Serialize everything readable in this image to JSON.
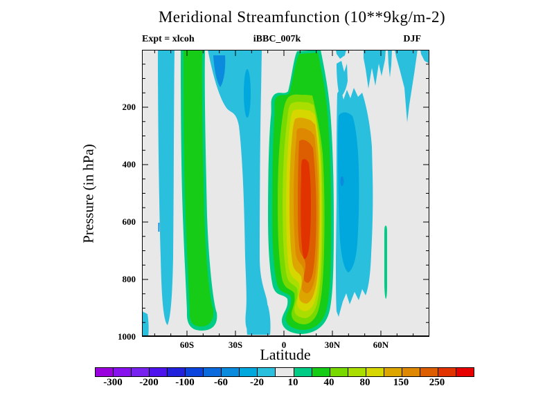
{
  "title": "Meridional Streamfunction (10**9kg/m-2)",
  "annotations": {
    "left": "Expt = xlcoh",
    "center": "iBBC_007k",
    "right": "DJF"
  },
  "axes": {
    "x": {
      "label": "Latitude",
      "tick_labels": [
        "60S",
        "30S",
        "0",
        "30N",
        "60N"
      ]
    },
    "y": {
      "label": "Pressure (in hPa)",
      "tick_labels": [
        "200",
        "400",
        "600",
        "800",
        "1000"
      ]
    }
  },
  "colorbar": {
    "labels": [
      "-300",
      "-200",
      "-100",
      "-60",
      "-20",
      "10",
      "40",
      "80",
      "150",
      "250"
    ],
    "colors": [
      "#9900dd",
      "#8812ee",
      "#7722ee",
      "#4d14ee",
      "#2222dd",
      "#0b45dd",
      "#0b6bdd",
      "#0b8bdd",
      "#00a8dd",
      "#29bfdd",
      "#e8e8e8",
      "#00cc85",
      "#16cc16",
      "#77d900",
      "#aadd00",
      "#d6d600",
      "#dda500",
      "#dd8800",
      "#dd5e00",
      "#e03300",
      "#e60000"
    ]
  },
  "chart_data": {
    "type": "heatmap",
    "subtype": "filled-contour (latitude-pressure cross section)",
    "title": "Meridional Streamfunction (10**9kg/m-2)",
    "xlabel": "Latitude",
    "ylabel": "Pressure (in hPa)",
    "x_ticks": [
      "60S",
      "30S",
      "0",
      "30N",
      "60N"
    ],
    "x_range_deg": [
      -90,
      90
    ],
    "y_ticks": [
      200,
      400,
      600,
      800,
      1000
    ],
    "y_range_hpa": [
      0,
      1000
    ],
    "season": "DJF",
    "experiment": "xlcoh",
    "run_id": "iBBC_007k",
    "contour_levels": [
      -300,
      -250,
      -200,
      -150,
      -100,
      -80,
      -60,
      -40,
      -20,
      -10,
      10,
      20,
      40,
      60,
      80,
      100,
      150,
      200,
      250,
      300
    ],
    "level_colors": [
      "#9900dd",
      "#8812ee",
      "#7722ee",
      "#4d14ee",
      "#2222dd",
      "#0b45dd",
      "#0b6bdd",
      "#0b8bdd",
      "#00a8dd",
      "#29bfdd",
      "#e8e8e8",
      "#00cc85",
      "#16cc16",
      "#77d900",
      "#aadd00",
      "#d6d600",
      "#dda500",
      "#dd8800",
      "#dd5e00",
      "#e03300",
      "#e60000"
    ],
    "background_band": "-10 to 10 (light gray)",
    "features": [
      {
        "name": "antarctic-negative-band",
        "lat": "78S-72S",
        "pressure": "0-920 hPa",
        "value": "-20 to -10"
      },
      {
        "name": "southern-ferrel-positive-band",
        "lat": "66S-56S",
        "pressure": "0-980 hPa",
        "value": "20 to 40 core with 10-20 rim"
      },
      {
        "name": "southern-subtropical-negative-band",
        "lat": "47S-17S",
        "pressure": "0-1000 hPa",
        "value": "-20 to -10 with -60 to -40 spots aloft"
      },
      {
        "name": "hadley-cell-positive-plume",
        "lat": "10S-20N",
        "pressure": "30-990 hPa",
        "value": "nested rings 10 to 300, max 250-300 near 5N-10N at 350-650 hPa"
      },
      {
        "name": "northern-negative-band",
        "lat": "22N-35N",
        "pressure": "100-880 hPa",
        "value": "-20 to -10 with -40 to -20 core"
      },
      {
        "name": "arctic-upper-negative-patches",
        "lat": "45N-85N",
        "pressure": "0-250 hPa",
        "value": "-20 to -10"
      },
      {
        "name": "northern-thin-positive-sliver",
        "lat": "62N",
        "pressure": "550-800 hPa",
        "value": "10 to 20"
      },
      {
        "name": "southwest-corner-negative-patch",
        "lat": "89S-86S",
        "pressure": "880-1000 hPa",
        "value": "-20 to -10"
      }
    ]
  }
}
